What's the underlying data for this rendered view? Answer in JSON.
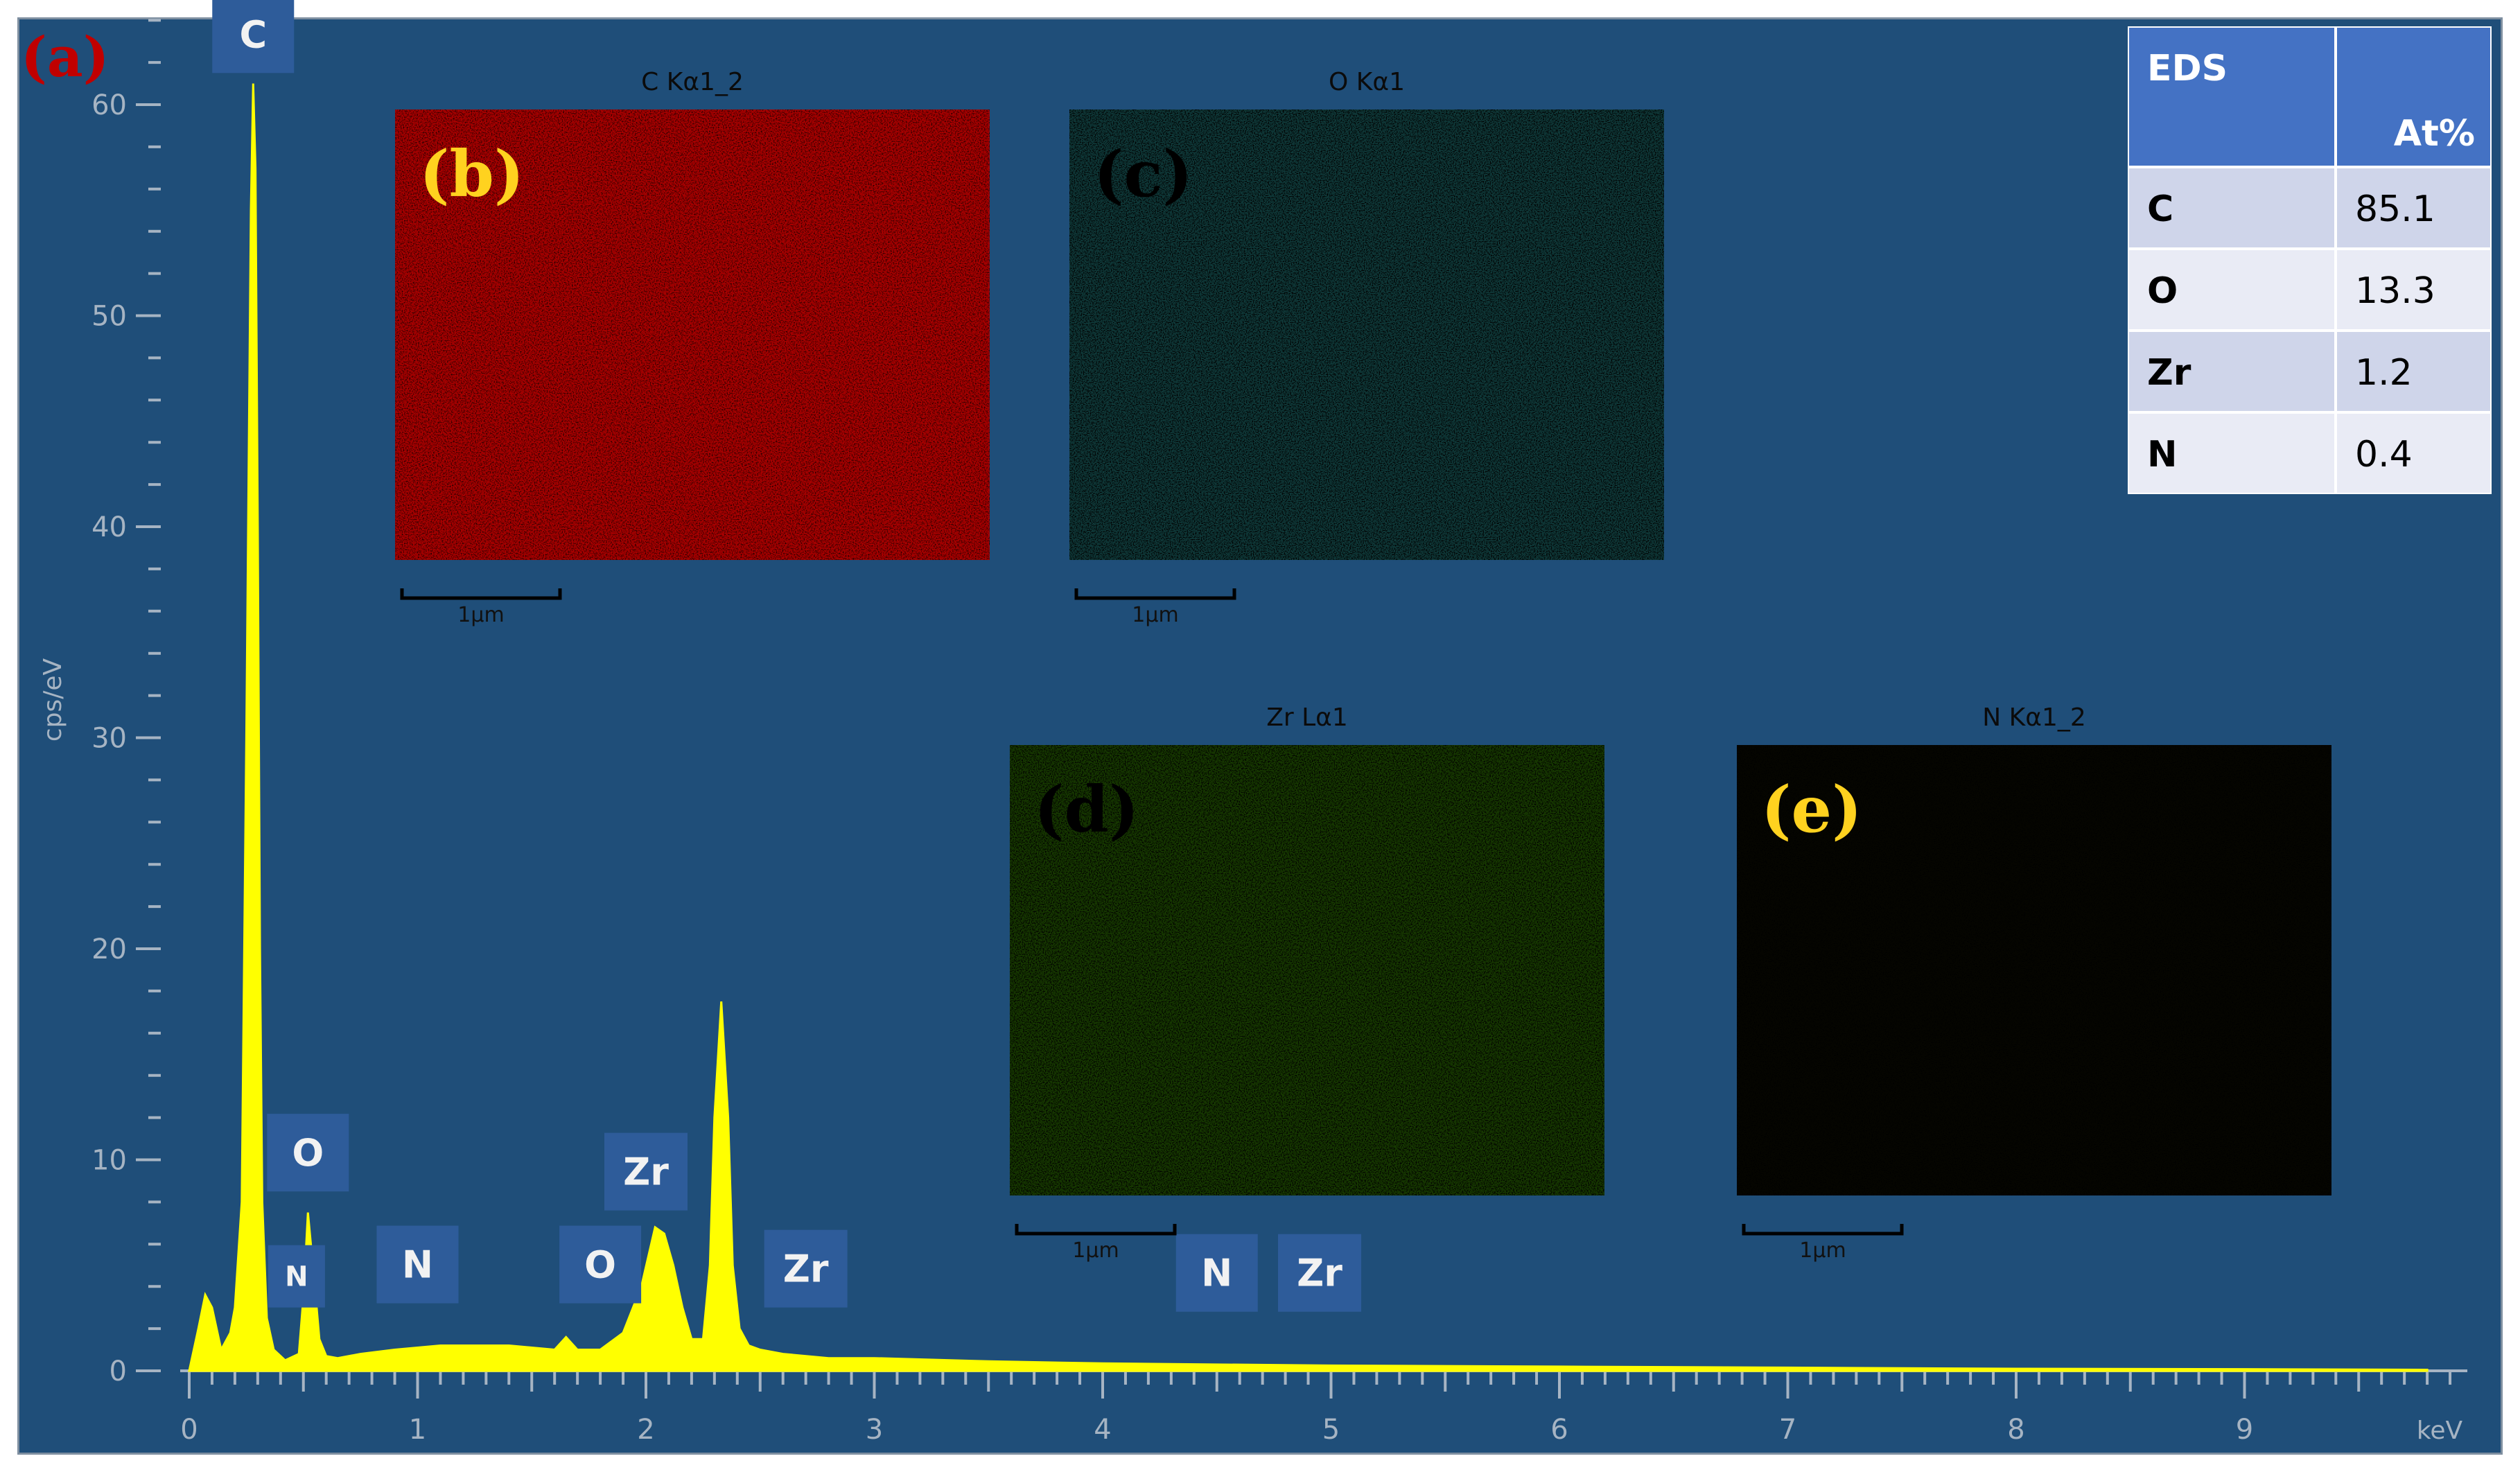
{
  "chart_data": {
    "type": "area",
    "panel_label": "(a)",
    "ylabel": "cps/eV",
    "xunit": "keV",
    "xlim": [
      0,
      10
    ],
    "ylim": [
      0,
      60
    ],
    "x_ticks": [
      0,
      1,
      2,
      3,
      4,
      5,
      6,
      7,
      8,
      9
    ],
    "y_ticks": [
      0,
      10,
      20,
      30,
      40,
      50,
      60
    ],
    "grid": false,
    "series_color": "#ffff00",
    "spectrum": {
      "x": [
        0.0,
        0.04,
        0.07,
        0.1,
        0.14,
        0.18,
        0.2,
        0.23,
        0.25,
        0.27,
        0.28,
        0.29,
        0.3,
        0.31,
        0.32,
        0.34,
        0.37,
        0.42,
        0.48,
        0.5,
        0.52,
        0.55,
        0.57,
        0.6,
        0.65,
        0.75,
        0.9,
        1.1,
        1.4,
        1.6,
        1.65,
        1.7,
        1.8,
        1.9,
        1.98,
        2.04,
        2.08,
        2.12,
        2.16,
        2.2,
        2.25,
        2.28,
        2.3,
        2.33,
        2.36,
        2.38,
        2.41,
        2.45,
        2.5,
        2.6,
        2.8,
        3.0,
        3.5,
        4.0,
        5.0,
        6.0,
        7.0,
        8.0,
        9.0,
        9.8
      ],
      "y": [
        0,
        2.0,
        3.6,
        3.0,
        1.0,
        1.8,
        3.0,
        8.0,
        30.0,
        55.0,
        61.0,
        57.0,
        40.0,
        20.0,
        8.0,
        2.5,
        1.0,
        0.5,
        0.8,
        3.5,
        7.5,
        4.0,
        1.5,
        0.7,
        0.6,
        0.8,
        1.0,
        1.2,
        1.2,
        1.0,
        1.6,
        1.0,
        1.0,
        1.8,
        4.0,
        6.8,
        6.5,
        5.0,
        3.0,
        1.5,
        1.5,
        5.0,
        12.0,
        17.5,
        12.0,
        5.0,
        2.0,
        1.2,
        1.0,
        0.8,
        0.6,
        0.6,
        0.45,
        0.35,
        0.25,
        0.2,
        0.15,
        0.1,
        0.08,
        0.05
      ]
    },
    "peak_labels": [
      {
        "text": "C",
        "x": 0.28,
        "y": 61.5,
        "size": "large"
      },
      {
        "text": "O",
        "x": 0.52,
        "y": 8.5,
        "size": "large"
      },
      {
        "text": "N",
        "x": 0.47,
        "y": 3.0,
        "size": "small"
      },
      {
        "text": "N",
        "x": 1.0,
        "y": 3.2,
        "size": "large"
      },
      {
        "text": "O",
        "x": 1.8,
        "y": 3.2,
        "size": "large"
      },
      {
        "text": "Zr",
        "x": 2.0,
        "y": 7.6,
        "size": "large"
      },
      {
        "text": "Zr",
        "x": 2.7,
        "y": 3.0,
        "size": "large"
      },
      {
        "text": "N",
        "x": 4.5,
        "y": 2.8,
        "size": "large"
      },
      {
        "text": "Zr",
        "x": 4.95,
        "y": 2.8,
        "size": "large"
      }
    ]
  },
  "maps": [
    {
      "label": "(b)",
      "title": "C Kα1_2",
      "color": "#ff0000",
      "background": "#aa0000",
      "label_color": "#ffd21f",
      "scale": "1µm"
    },
    {
      "label": "(c)",
      "title": "O Kα1",
      "color": "#3ee2e2",
      "background": "#0f3a3a",
      "label_color": "#000000",
      "scale": "1µm"
    },
    {
      "label": "(d)",
      "title": "Zr Lα1",
      "color": "#66dd00",
      "background": "#173a00",
      "label_color": "#000000",
      "scale": "1µm"
    },
    {
      "label": "(e)",
      "title": "N Kα1_2",
      "color": "#e6e000",
      "background": "#050500",
      "label_color": "#ffd21f",
      "scale": "1µm"
    }
  ],
  "eds_table": {
    "header": [
      "EDS",
      "At%"
    ],
    "rows": [
      {
        "element": "C",
        "value": "85.1"
      },
      {
        "element": "O",
        "value": "13.3"
      },
      {
        "element": "Zr",
        "value": "1.2"
      },
      {
        "element": "N",
        "value": "0.4"
      }
    ]
  },
  "colors": {
    "panel_background": "#1f4e79",
    "axis": "#a6b4c3",
    "label_box": "#2e5c9a",
    "panel_label_a": "#c00000",
    "table_header": "#4472c4",
    "table_row_odd": "#cfd5ea",
    "table_row_even": "#e9ebf5"
  }
}
